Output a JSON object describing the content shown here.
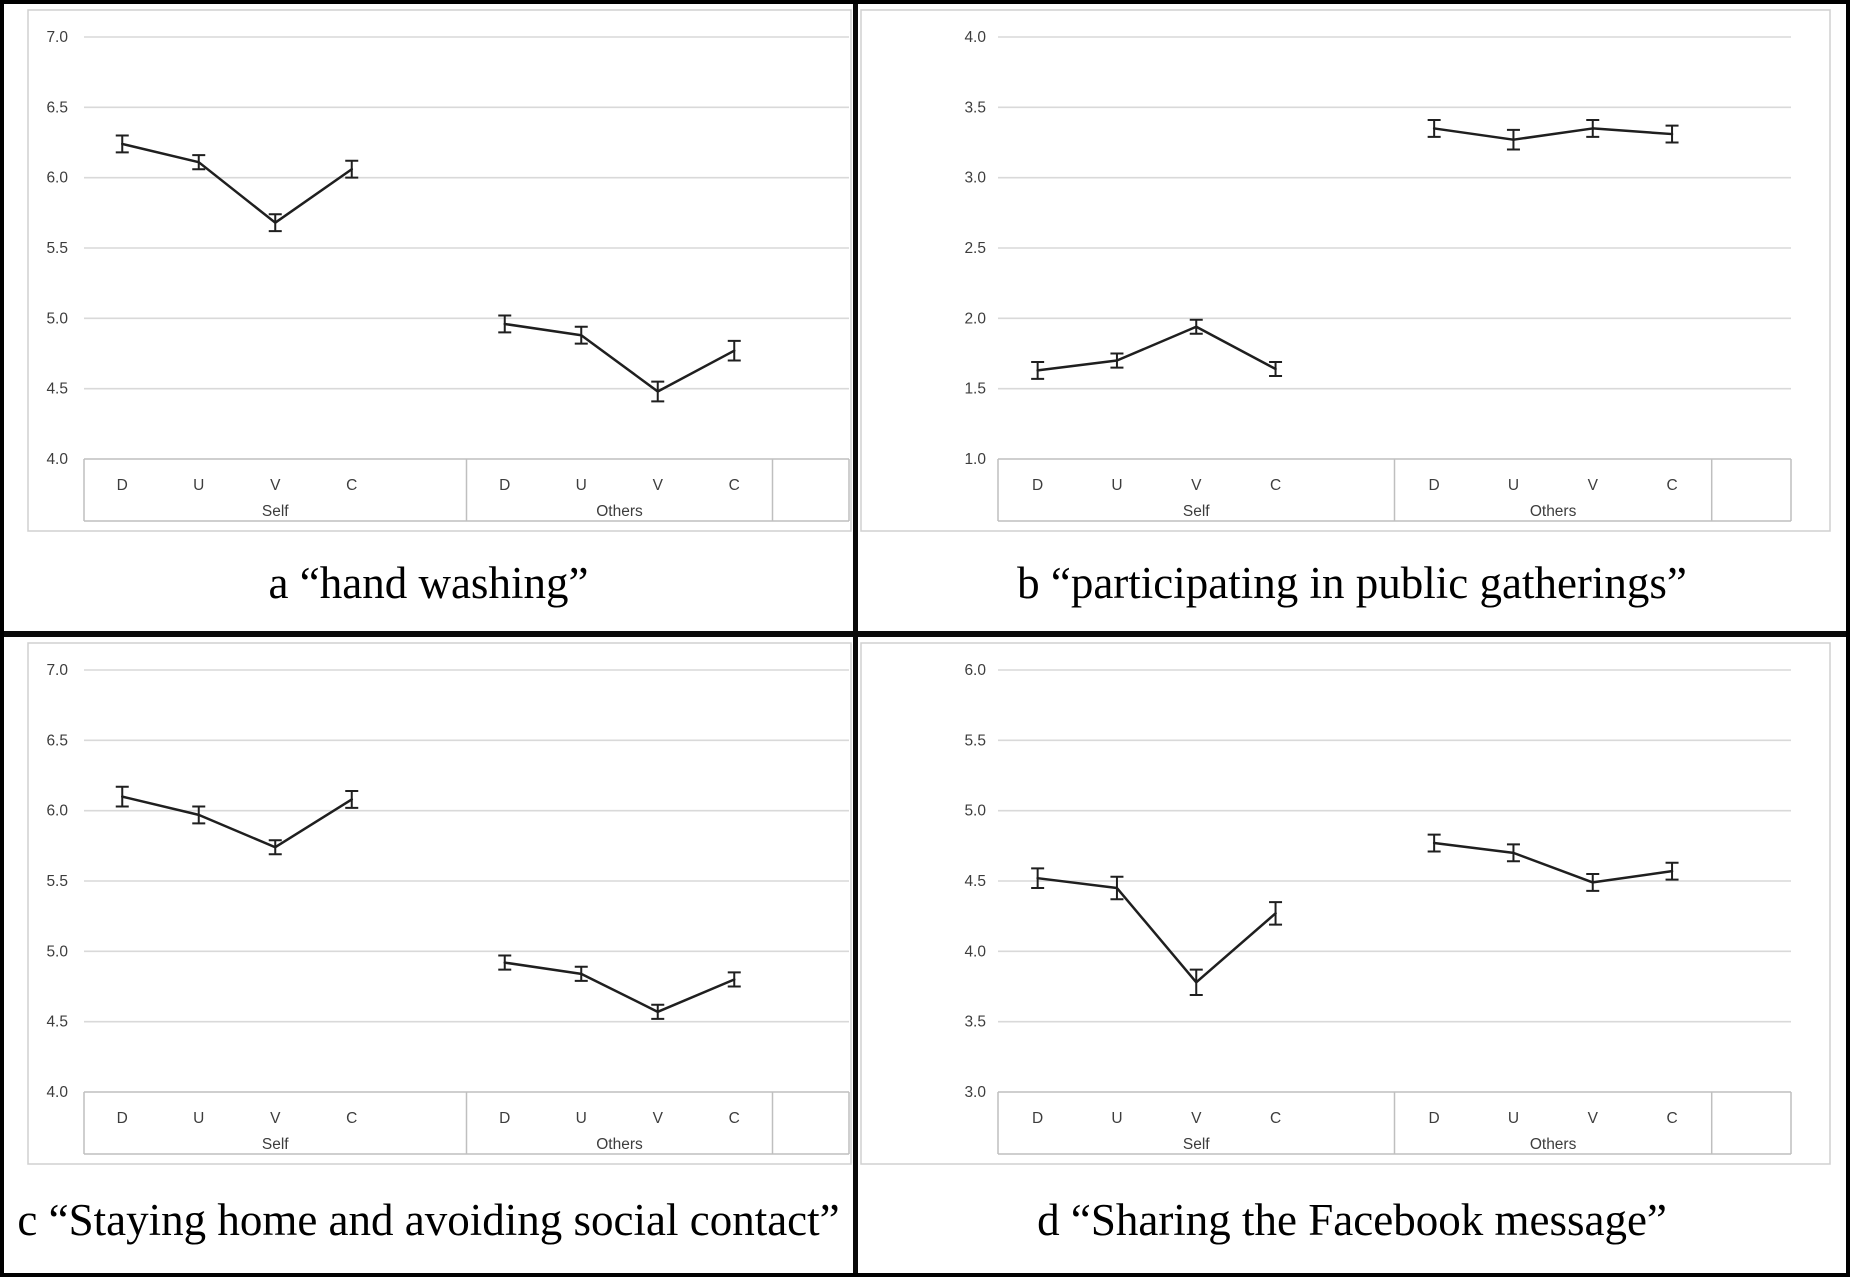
{
  "style": {
    "gridline": "#d9d9d9",
    "axis_line": "#bfbfbf",
    "box_border": "#d0d0d0",
    "line": "#1f1f1f",
    "panel_divider": "#0a0a0a",
    "tick_text": "#3d3d3d",
    "caption_text": "#000000"
  },
  "chart_data": [
    {
      "id": "a",
      "type": "line",
      "caption": "a “hand washing”",
      "categories": [
        "D",
        "U",
        "V",
        "C"
      ],
      "group_labels": [
        "Self",
        "Others"
      ],
      "ylim": [
        4.0,
        7.0
      ],
      "ytick_step": 0.5,
      "ytick_labels": [
        "4.0",
        "4.5",
        "5.0",
        "5.5",
        "6.0",
        "6.5",
        "7.0"
      ],
      "grid": true,
      "legend": "none",
      "series": [
        {
          "name": "Self",
          "values": [
            6.24,
            6.11,
            5.68,
            6.06
          ],
          "errors": [
            0.06,
            0.05,
            0.06,
            0.06
          ]
        },
        {
          "name": "Others",
          "values": [
            4.96,
            4.88,
            4.48,
            4.77
          ],
          "errors": [
            0.06,
            0.06,
            0.07,
            0.07
          ]
        }
      ]
    },
    {
      "id": "b",
      "type": "line",
      "caption": "b “participating in public gatherings”",
      "categories": [
        "D",
        "U",
        "V",
        "C"
      ],
      "group_labels": [
        "Self",
        "Others"
      ],
      "ylim": [
        1.0,
        4.0
      ],
      "ytick_step": 0.5,
      "ytick_labels": [
        "1.0",
        "1.5",
        "2.0",
        "2.5",
        "3.0",
        "3.5",
        "4.0"
      ],
      "grid": true,
      "legend": "none",
      "series": [
        {
          "name": "Self",
          "values": [
            1.63,
            1.7,
            1.94,
            1.64
          ],
          "errors": [
            0.06,
            0.05,
            0.05,
            0.05
          ]
        },
        {
          "name": "Others",
          "values": [
            3.35,
            3.27,
            3.35,
            3.31
          ],
          "errors": [
            0.06,
            0.07,
            0.06,
            0.06
          ]
        }
      ]
    },
    {
      "id": "c",
      "type": "line",
      "caption": "c “Staying home and avoiding social contact”",
      "categories": [
        "D",
        "U",
        "V",
        "C"
      ],
      "group_labels": [
        "Self",
        "Others"
      ],
      "ylim": [
        4.0,
        7.0
      ],
      "ytick_step": 0.5,
      "ytick_labels": [
        "4.0",
        "4.5",
        "5.0",
        "5.5",
        "6.0",
        "6.5",
        "7.0"
      ],
      "grid": true,
      "legend": "none",
      "series": [
        {
          "name": "Self",
          "values": [
            6.1,
            5.97,
            5.74,
            6.08
          ],
          "errors": [
            0.07,
            0.06,
            0.05,
            0.06
          ]
        },
        {
          "name": "Others",
          "values": [
            4.92,
            4.84,
            4.57,
            4.8
          ],
          "errors": [
            0.05,
            0.05,
            0.05,
            0.05
          ]
        }
      ]
    },
    {
      "id": "d",
      "type": "line",
      "caption": "d “Sharing the Facebook message”",
      "categories": [
        "D",
        "U",
        "V",
        "C"
      ],
      "group_labels": [
        "Self",
        "Others"
      ],
      "ylim": [
        3.0,
        6.0
      ],
      "ytick_step": 0.5,
      "ytick_labels": [
        "3.0",
        "3.5",
        "4.0",
        "4.5",
        "5.0",
        "5.5",
        "6.0"
      ],
      "grid": true,
      "legend": "none",
      "series": [
        {
          "name": "Self",
          "values": [
            4.52,
            4.45,
            3.78,
            4.27
          ],
          "errors": [
            0.07,
            0.08,
            0.09,
            0.08
          ]
        },
        {
          "name": "Others",
          "values": [
            4.77,
            4.7,
            4.49,
            4.57
          ],
          "errors": [
            0.06,
            0.06,
            0.06,
            0.06
          ]
        }
      ]
    }
  ]
}
